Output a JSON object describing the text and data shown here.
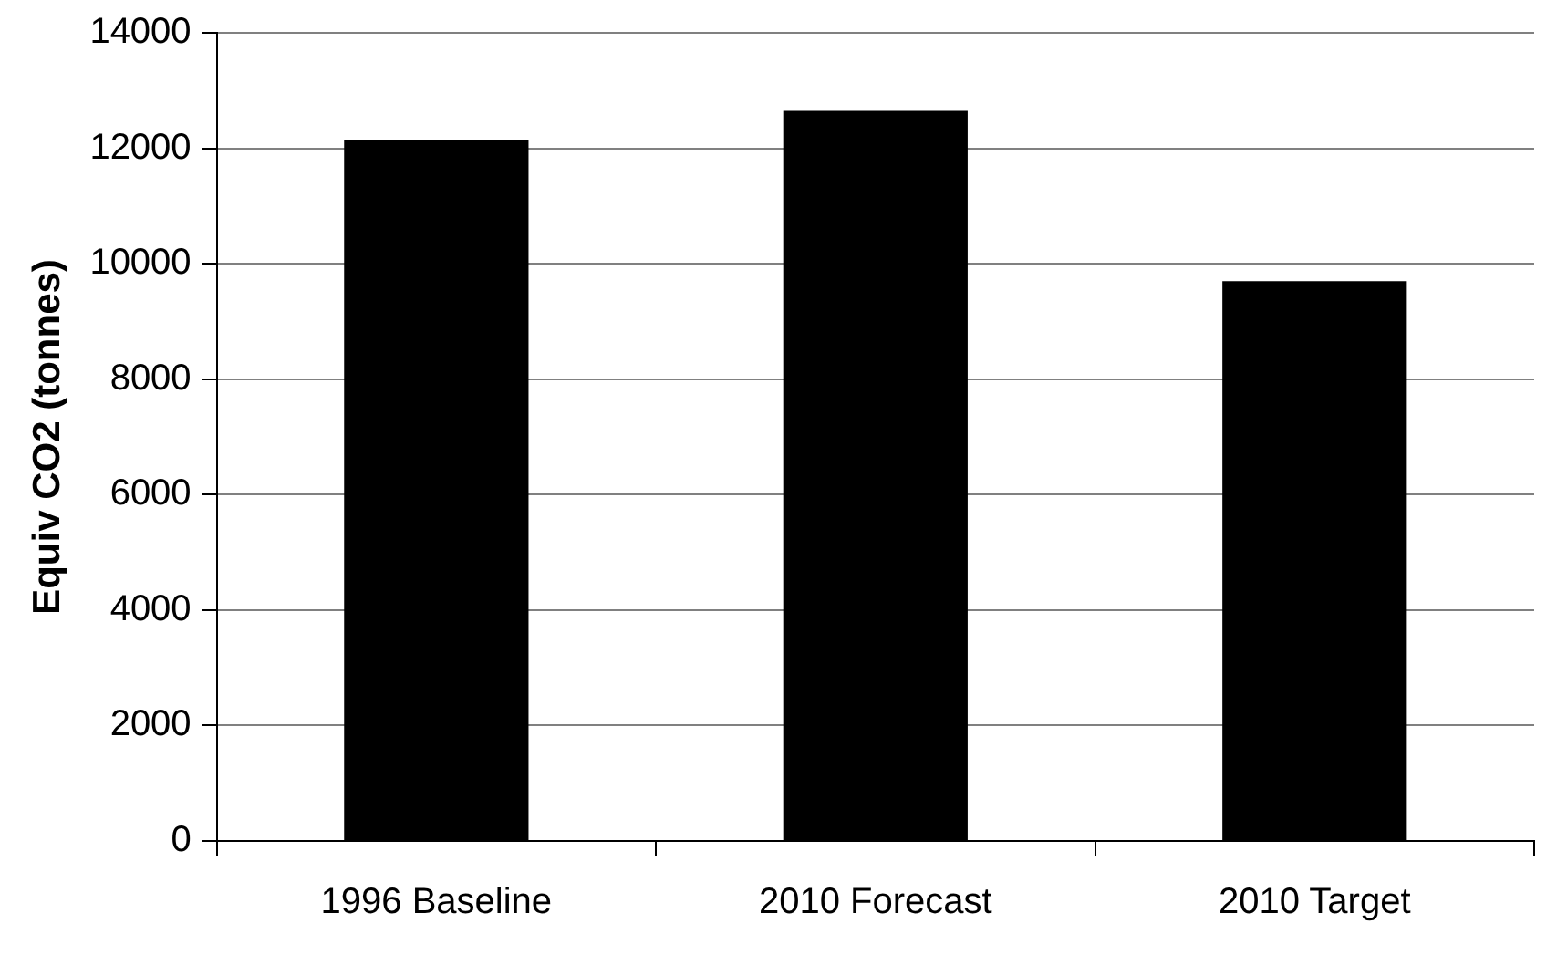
{
  "chart_data": {
    "type": "bar",
    "ylabel": "Equiv CO2 (tonnes)",
    "categories": [
      "1996 Baseline",
      "2010 Forecast",
      "2010 Target"
    ],
    "values": [
      12150,
      12650,
      9700
    ],
    "color": "#000000",
    "ylim": [
      0,
      14000
    ],
    "yticks": [
      0,
      2000,
      4000,
      6000,
      8000,
      10000,
      12000,
      14000
    ],
    "grid": "y",
    "legend": false
  }
}
